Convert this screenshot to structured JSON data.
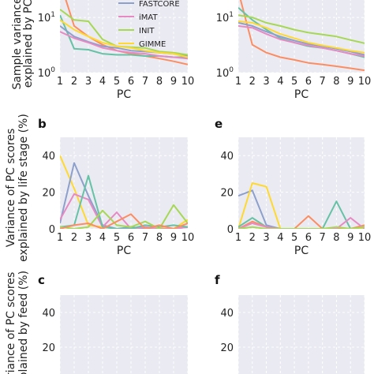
{
  "colors": {
    "FASTCORE": "#8da0cb",
    "iMAT": "#e78ac3",
    "INIT": "#a6d854",
    "GIMME": "#ffd92f",
    "extra1": "#fc8d62",
    "extra2": "#66c2a5",
    "panel_bg": "#eaeaf2",
    "grid": "#ffffff"
  },
  "chart_data": [
    {
      "panel": "",
      "type": "line",
      "xlabel": "PC",
      "ylabel": "Sample variance explained by PC",
      "yscale": "log",
      "ylim": [
        1,
        40
      ],
      "x": [
        1,
        2,
        3,
        4,
        5,
        6,
        7,
        8,
        9,
        10
      ],
      "xticks": [
        "1",
        "2",
        "3",
        "4",
        "5",
        "6",
        "7",
        "8",
        "9",
        "10"
      ],
      "yticks": [
        {
          "label": "10",
          "sup": "0",
          "value": 1
        },
        {
          "label": "10",
          "sup": "1",
          "value": 10
        }
      ],
      "legend": [
        "FASTCORE",
        "iMAT",
        "INIT",
        "GIMME"
      ],
      "series": [
        {
          "color_key": "extra1",
          "values": [
            45,
            7,
            4.5,
            3.2,
            2.5,
            2.2,
            2.0,
            1.8,
            1.6,
            1.4
          ]
        },
        {
          "color_key": "extra2",
          "values": [
            11,
            2.7,
            2.6,
            2.2,
            2.1,
            2.1,
            2.0,
            2.0,
            1.9,
            1.9
          ]
        },
        {
          "color_key": "FASTCORE",
          "values": [
            7,
            4.5,
            3.6,
            3.0,
            2.8,
            2.5,
            2.4,
            2.3,
            2.2,
            2.0
          ]
        },
        {
          "color_key": "iMAT",
          "values": [
            5.5,
            4.2,
            3.5,
            2.8,
            2.5,
            2.3,
            2.2,
            2.0,
            1.9,
            1.8
          ]
        },
        {
          "color_key": "INIT",
          "values": [
            14,
            9,
            8.5,
            4,
            3,
            2.9,
            2.8,
            2.4,
            2.3,
            2.1
          ]
        },
        {
          "color_key": "GIMME",
          "values": [
            9,
            6,
            4.5,
            3.5,
            3.0,
            2.8,
            2.5,
            2.3,
            2.2,
            1.9
          ]
        }
      ]
    },
    {
      "panel": "",
      "type": "line",
      "xlabel": "PC",
      "yscale": "log",
      "ylim": [
        1,
        40
      ],
      "x": [
        1,
        2,
        3,
        4,
        5,
        6,
        7,
        8,
        9,
        10
      ],
      "xticks": [
        "1",
        "2",
        "3",
        "4",
        "5",
        "6",
        "7",
        "8",
        "9",
        "10"
      ],
      "yticks": [
        {
          "label": "10",
          "sup": "0",
          "value": 1
        },
        {
          "label": "10",
          "sup": "1",
          "value": 10
        }
      ],
      "series": [
        {
          "color_key": "extra1",
          "values": [
            30,
            3.2,
            2.3,
            1.9,
            1.7,
            1.5,
            1.4,
            1.3,
            1.2,
            1.1
          ]
        },
        {
          "color_key": "extra2",
          "values": [
            15,
            9,
            6,
            4.2,
            3.5,
            3.0,
            2.8,
            2.5,
            2.2,
            1.9
          ]
        },
        {
          "color_key": "FASTCORE",
          "values": [
            8,
            7,
            5.5,
            4.5,
            3.8,
            3.3,
            3.0,
            2.7,
            2.4,
            2.1
          ]
        },
        {
          "color_key": "iMAT",
          "values": [
            7,
            6.5,
            5,
            4,
            3.5,
            3.1,
            2.8,
            2.5,
            2.2,
            2.0
          ]
        },
        {
          "color_key": "INIT",
          "values": [
            11,
            10,
            8,
            7,
            6,
            5.3,
            4.9,
            4.5,
            3.9,
            3.4
          ]
        },
        {
          "color_key": "GIMME",
          "values": [
            8.5,
            8,
            6.5,
            5,
            4.2,
            3.5,
            3.1,
            2.8,
            2.5,
            2.3
          ]
        }
      ]
    },
    {
      "panel": "b",
      "type": "line",
      "xlabel": "PC",
      "ylabel": "Variance of PC scores explained by life stage (%)",
      "ylim": [
        0,
        50
      ],
      "x": [
        1,
        2,
        3,
        4,
        5,
        6,
        7,
        8,
        9,
        10
      ],
      "xticks": [
        "1",
        "2",
        "3",
        "4",
        "5",
        "6",
        "7",
        "8",
        "9",
        "10"
      ],
      "yticks": [
        {
          "label": "0",
          "value": 0
        },
        {
          "label": "20",
          "value": 20
        },
        {
          "label": "40",
          "value": 40
        }
      ],
      "series": [
        {
          "color_key": "GIMME",
          "values": [
            40,
            22,
            2,
            1,
            0,
            0,
            0,
            1,
            0,
            5
          ]
        },
        {
          "color_key": "FASTCORE",
          "values": [
            3,
            36,
            18,
            2,
            0,
            1,
            0,
            0,
            0,
            1
          ]
        },
        {
          "color_key": "iMAT",
          "values": [
            5,
            19,
            16,
            1,
            9,
            0,
            1,
            0,
            0,
            1
          ]
        },
        {
          "color_key": "extra2",
          "values": [
            1,
            2,
            29,
            1,
            0,
            0,
            2,
            1,
            2,
            1
          ]
        },
        {
          "color_key": "INIT",
          "values": [
            1,
            0,
            1,
            10,
            2,
            1,
            4,
            0,
            13,
            3
          ]
        },
        {
          "color_key": "extra1",
          "values": [
            0,
            2,
            3,
            0,
            4,
            8,
            0,
            2,
            0,
            3
          ]
        }
      ]
    },
    {
      "panel": "e",
      "type": "line",
      "xlabel": "PC",
      "ylim": [
        0,
        50
      ],
      "x": [
        1,
        2,
        3,
        4,
        5,
        6,
        7,
        8,
        9,
        10
      ],
      "xticks": [
        "1",
        "2",
        "3",
        "4",
        "5",
        "6",
        "7",
        "8",
        "9",
        "10"
      ],
      "yticks": [
        {
          "label": "0",
          "value": 0
        },
        {
          "label": "20",
          "value": 20
        },
        {
          "label": "40",
          "value": 40
        }
      ],
      "series": [
        {
          "color_key": "FASTCORE",
          "values": [
            18,
            21,
            2,
            0,
            0,
            0,
            0,
            0,
            0,
            0
          ]
        },
        {
          "color_key": "GIMME",
          "values": [
            0,
            25,
            23,
            0,
            0,
            0,
            0,
            0,
            0,
            0
          ]
        },
        {
          "color_key": "extra2",
          "values": [
            1,
            6,
            1,
            0,
            0,
            0,
            0,
            15,
            0,
            1
          ]
        },
        {
          "color_key": "extra1",
          "values": [
            0,
            4,
            1,
            0,
            0,
            7,
            0,
            0,
            0,
            2
          ]
        },
        {
          "color_key": "iMAT",
          "values": [
            0,
            3,
            1,
            0,
            0,
            0,
            0,
            0,
            6,
            0
          ]
        },
        {
          "color_key": "INIT",
          "values": [
            0,
            1,
            0,
            0,
            0,
            0,
            0,
            1,
            0,
            1
          ]
        }
      ]
    },
    {
      "panel": "c",
      "type": "line",
      "ylabel": "Variance of PC scores explained by feed (%)",
      "ylim": [
        0,
        50
      ],
      "yticks": [
        {
          "label": "20",
          "value": 20
        },
        {
          "label": "40",
          "value": 40
        }
      ],
      "series": []
    },
    {
      "panel": "f",
      "type": "line",
      "ylim": [
        0,
        50
      ],
      "yticks": [
        {
          "label": "20",
          "value": 20
        },
        {
          "label": "40",
          "value": 40
        }
      ],
      "series": []
    }
  ],
  "ylabels_visible": {
    "top": "Sample variance explained by PC",
    "middle_line1": "Variance of PC scores",
    "middle_line2": "explained by life stage (%)",
    "bottom_line1": "Variance of PC scores",
    "bottom_line2": "explained by feed (%)"
  }
}
